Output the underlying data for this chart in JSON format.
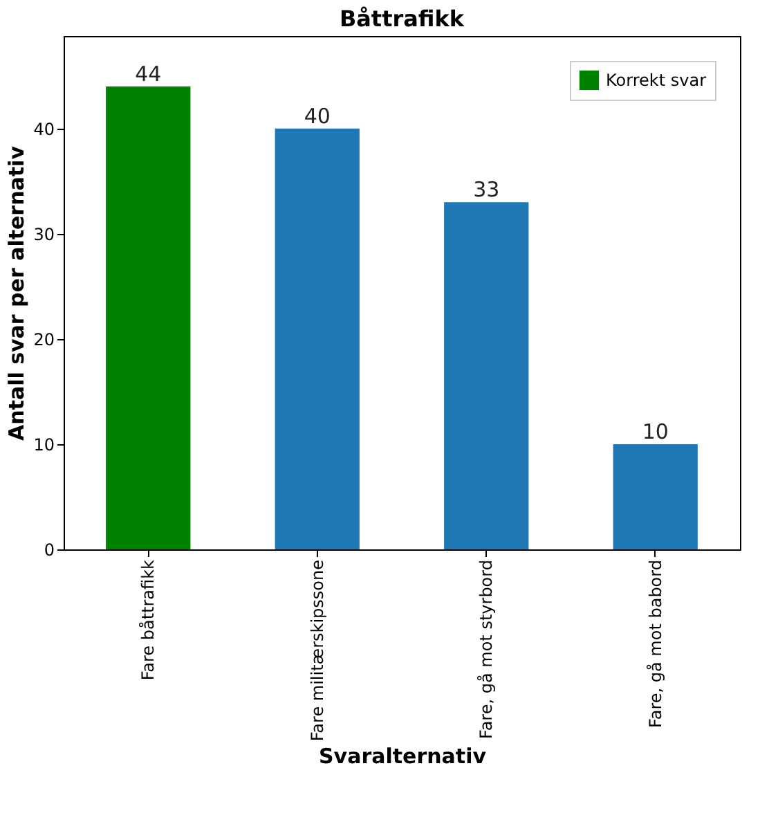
{
  "chart_data": {
    "type": "bar",
    "title": "Båttrafikk",
    "xlabel": "Svaralternativ",
    "ylabel": "Antall svar per alternativ",
    "categories": [
      "Fare båttrafikk",
      "Fare militærskipssone",
      "Fare, gå mot styrbord",
      "Fare, gå mot babord"
    ],
    "series": [
      {
        "name": "Korrekt svar",
        "color": "#008000",
        "values": [
          44,
          null,
          null,
          null
        ]
      },
      {
        "color": "#1f77b4",
        "values": [
          null,
          40,
          33,
          10
        ]
      }
    ],
    "ylim": [
      0,
      48.8
    ],
    "yticks": [
      0,
      10,
      20,
      30,
      40
    ],
    "grid": false,
    "legend": "top right",
    "data_labels": true
  }
}
